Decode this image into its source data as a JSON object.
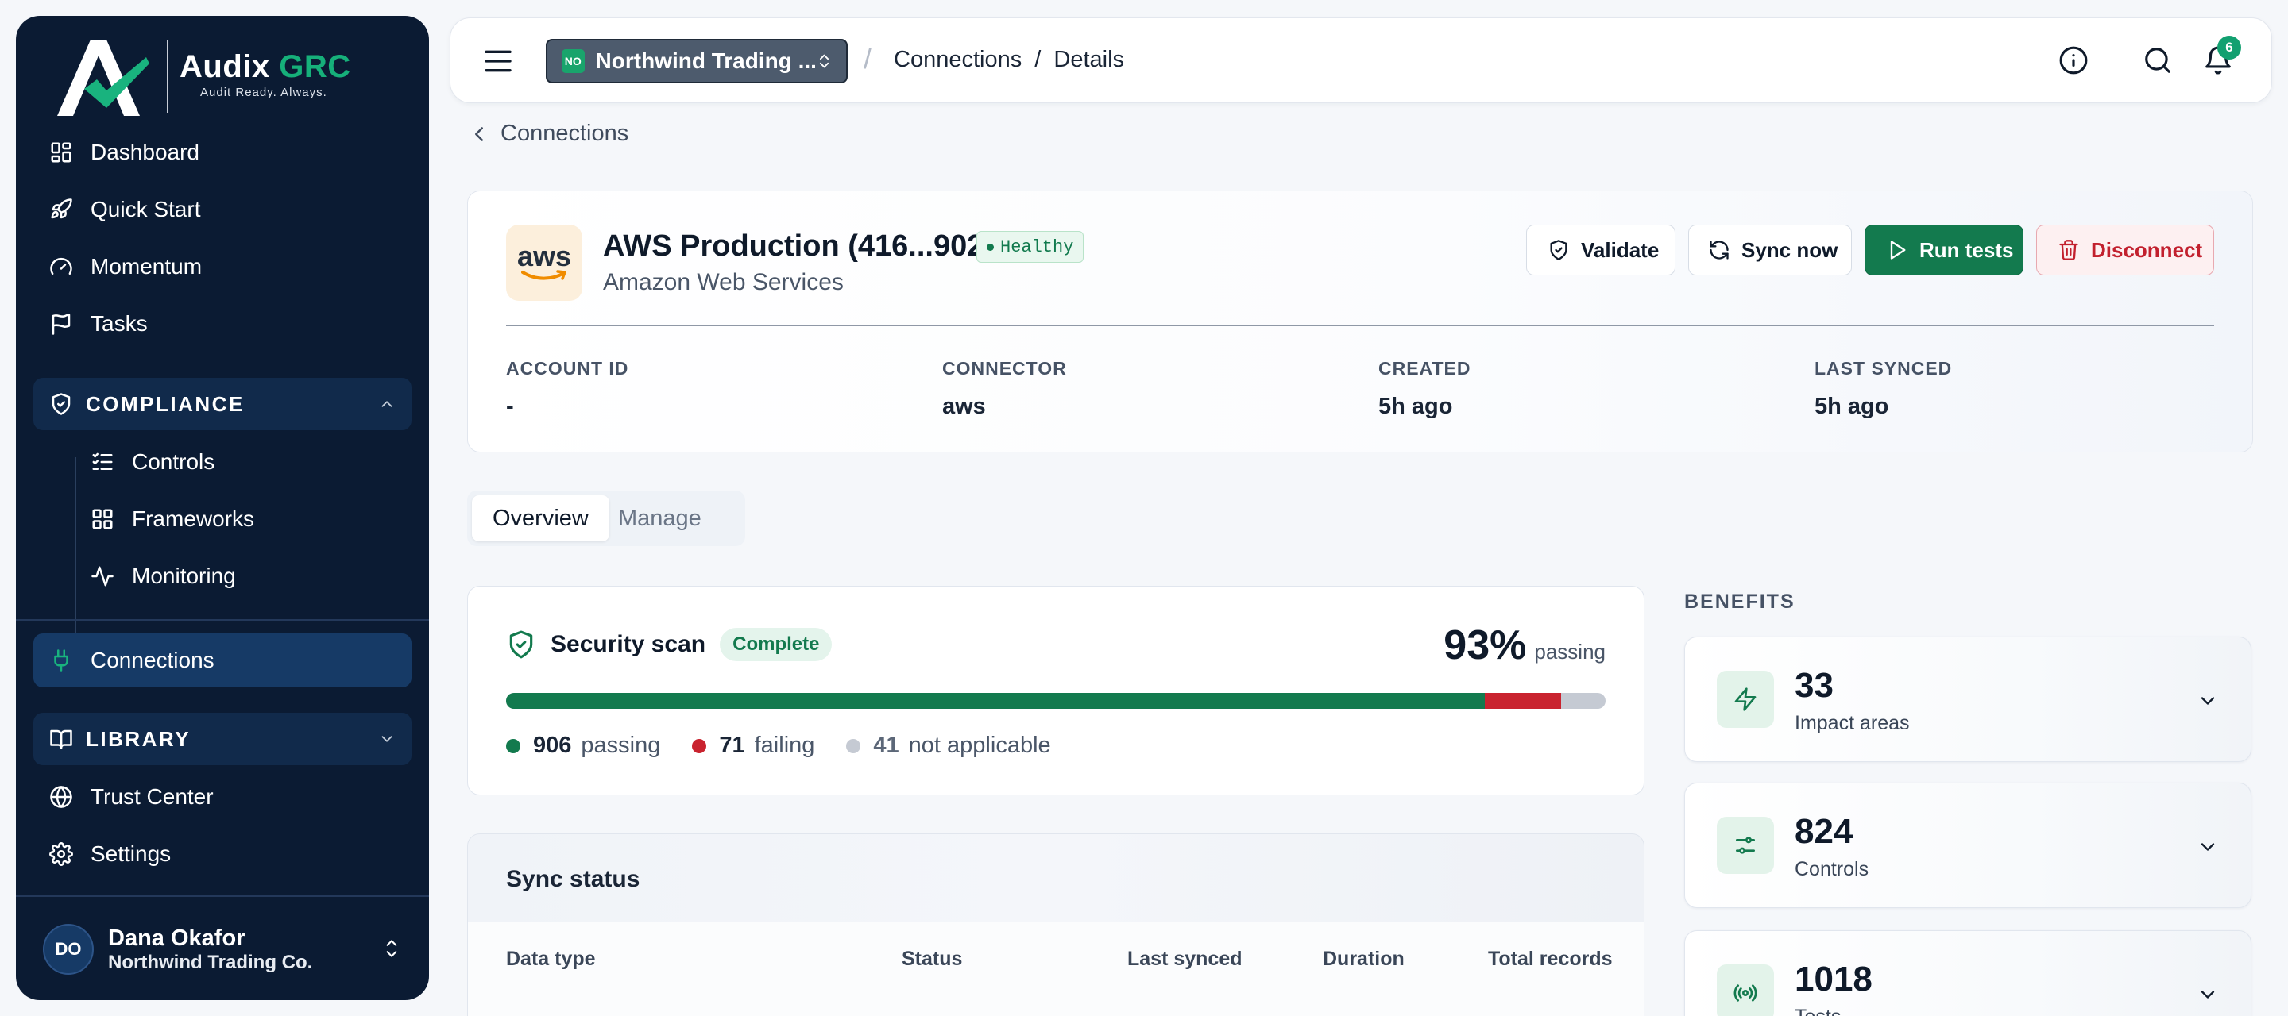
{
  "brand": {
    "name": "Audix",
    "name_accent": "GRC",
    "tagline": "Audit Ready. Always."
  },
  "sidebar": {
    "items": [
      {
        "label": "Dashboard",
        "icon": "grid-icon"
      },
      {
        "label": "Quick Start",
        "icon": "rocket-icon"
      },
      {
        "label": "Momentum",
        "icon": "gauge-icon"
      },
      {
        "label": "Tasks",
        "icon": "flag-icon"
      }
    ],
    "compliance": {
      "label": "COMPLIANCE",
      "children": [
        {
          "label": "Controls",
          "icon": "checklist-icon"
        },
        {
          "label": "Frameworks",
          "icon": "grid-icon"
        },
        {
          "label": "Monitoring",
          "icon": "activity-icon"
        }
      ]
    },
    "connections": {
      "label": "Connections",
      "icon": "plug-icon",
      "active": true
    },
    "library": {
      "label": "LIBRARY"
    },
    "bottom_items": [
      {
        "label": "Trust Center",
        "icon": "globe-icon"
      },
      {
        "label": "Settings",
        "icon": "gear-icon"
      }
    ],
    "user": {
      "initials": "DO",
      "name": "Dana Okafor",
      "org": "Northwind Trading Co."
    }
  },
  "topbar": {
    "org_badge": "NO",
    "org_name": "Northwind Trading ...",
    "breadcrumb_sep": "/",
    "breadcrumbs": [
      "Connections",
      "/",
      "Details"
    ],
    "notification_count": "6"
  },
  "back_label": "Connections",
  "connection": {
    "logo_text": "aws",
    "title": "AWS Production (416...9021)",
    "status": "Healthy",
    "provider": "Amazon Web Services",
    "actions": {
      "validate": "Validate",
      "sync": "Sync now",
      "run": "Run tests",
      "disconnect": "Disconnect"
    },
    "meta": [
      {
        "key": "ACCOUNT ID",
        "value": "-"
      },
      {
        "key": "CONNECTOR",
        "value": "aws"
      },
      {
        "key": "CREATED",
        "value": "5h ago"
      },
      {
        "key": "LAST SYNCED",
        "value": "5h ago"
      }
    ]
  },
  "tabs": [
    "Overview",
    "Manage"
  ],
  "scan": {
    "title": "Security scan",
    "status": "Complete",
    "percent": "93%",
    "percent_label": "passing",
    "passing": 906,
    "failing": 71,
    "not_applicable": 41,
    "passing_label": "passing",
    "failing_label": "failing",
    "na_label": "not applicable",
    "colors": {
      "passing": "#137a4e",
      "failing": "#c9232f",
      "not_applicable": "#c5cad3"
    }
  },
  "sync_status": {
    "title": "Sync status",
    "columns": [
      "Data type",
      "Status",
      "Last synced",
      "Duration",
      "Total records"
    ]
  },
  "benefits": {
    "label": "BENEFITS",
    "items": [
      {
        "value": "33",
        "label": "Impact areas",
        "icon": "bolt-icon"
      },
      {
        "value": "824",
        "label": "Controls",
        "icon": "sliders-icon"
      },
      {
        "value": "1018",
        "label": "Tests",
        "icon": "broadcast-icon"
      }
    ]
  },
  "accent_color": "#137a4e"
}
